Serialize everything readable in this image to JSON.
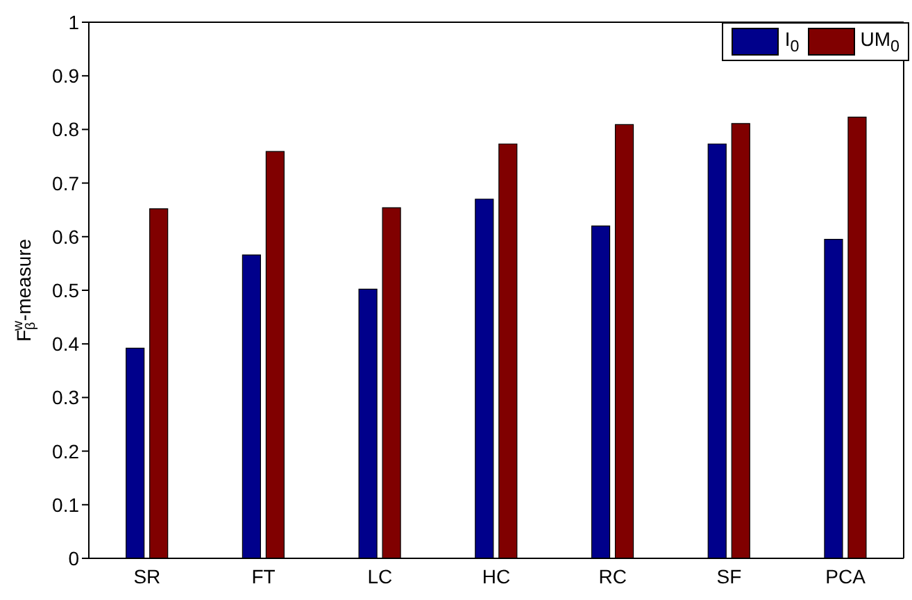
{
  "chart_data": {
    "type": "bar",
    "ylabel": "F$_{β}$$^{w}$-measure",
    "categories": [
      "SR",
      "FT",
      "LC",
      "HC",
      "RC",
      "SF",
      "PCA"
    ],
    "series": [
      {
        "name": "I$_{0}$",
        "color": "#00008b",
        "values": [
          0.392,
          0.566,
          0.502,
          0.67,
          0.62,
          0.773,
          0.595
        ]
      },
      {
        "name": "UM$_{0}$",
        "color": "#800000",
        "values": [
          0.652,
          0.759,
          0.654,
          0.773,
          0.809,
          0.811,
          0.823
        ]
      }
    ],
    "ylim": [
      0,
      1
    ],
    "yticks": [
      0,
      0.1,
      0.2,
      0.3,
      0.4,
      0.5,
      0.6,
      0.7,
      0.8,
      0.9,
      1
    ],
    "grid": false,
    "legend": "top right"
  }
}
